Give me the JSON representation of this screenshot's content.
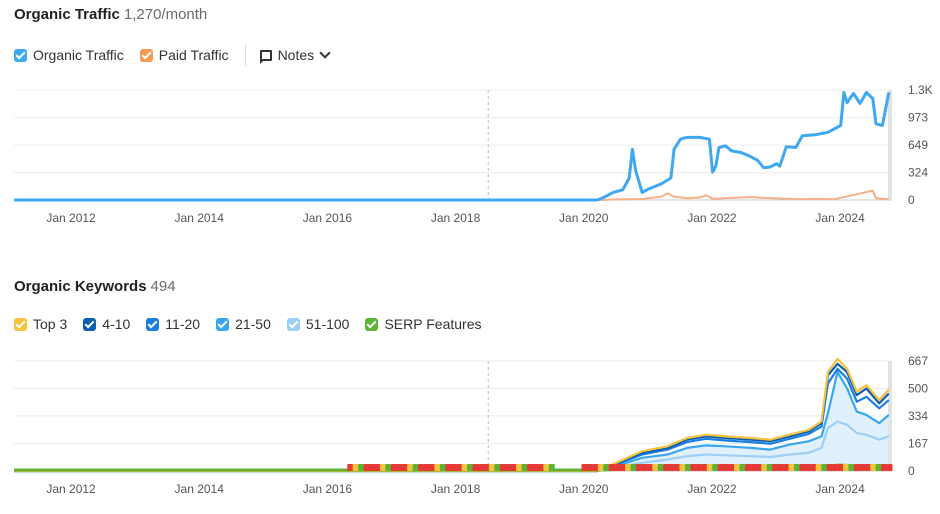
{
  "traffic": {
    "title": "Organic Traffic",
    "value": "1,270/month",
    "legend": [
      {
        "label": "Organic Traffic",
        "color": "#3ea8f0"
      },
      {
        "label": "Paid Traffic",
        "color": "#f79a4d"
      }
    ],
    "notes_label": "Notes"
  },
  "keywords": {
    "title": "Organic Keywords",
    "value": "494",
    "legend": [
      {
        "label": "Top 3",
        "color": "#f7c23c"
      },
      {
        "label": "4-10",
        "color": "#0a5fb4"
      },
      {
        "label": "11-20",
        "color": "#1a7fe0"
      },
      {
        "label": "21-50",
        "color": "#3aa6ee"
      },
      {
        "label": "51-100",
        "color": "#9ccff5"
      },
      {
        "label": "SERP Features",
        "color": "#5cb335"
      }
    ]
  },
  "chart_data": [
    {
      "type": "line",
      "xlim": [
        2011.5,
        2025.2
      ],
      "ylim": [
        0,
        1300
      ],
      "x_ticks": [
        {
          "x": 2012,
          "label": "Jan 2012"
        },
        {
          "x": 2014,
          "label": "Jan 2014"
        },
        {
          "x": 2016,
          "label": "Jan 2016"
        },
        {
          "x": 2018,
          "label": "Jan 2018"
        },
        {
          "x": 2020,
          "label": "Jan 2020"
        },
        {
          "x": 2022,
          "label": "Jan 2022"
        },
        {
          "x": 2024,
          "label": "Jan 2024"
        }
      ],
      "y_ticks": [
        {
          "y": 0,
          "label": "0"
        },
        {
          "y": 324,
          "label": "324"
        },
        {
          "y": 649,
          "label": "649"
        },
        {
          "y": 973,
          "label": "973"
        },
        {
          "y": 1300,
          "label": "1.3K"
        }
      ],
      "marker_x": 2018.9,
      "series": [
        {
          "name": "Organic Traffic",
          "color": "#3ea8f0",
          "points": [
            [
              2011.5,
              0
            ],
            [
              2020.6,
              0
            ],
            [
              2020.7,
              30
            ],
            [
              2020.85,
              90
            ],
            [
              2021.0,
              120
            ],
            [
              2021.1,
              260
            ],
            [
              2021.15,
              600
            ],
            [
              2021.2,
              350
            ],
            [
              2021.3,
              90
            ],
            [
              2021.4,
              130
            ],
            [
              2021.6,
              190
            ],
            [
              2021.75,
              260
            ],
            [
              2021.8,
              600
            ],
            [
              2021.9,
              720
            ],
            [
              2022.0,
              740
            ],
            [
              2022.1,
              740
            ],
            [
              2022.2,
              740
            ],
            [
              2022.35,
              720
            ],
            [
              2022.4,
              330
            ],
            [
              2022.45,
              400
            ],
            [
              2022.5,
              620
            ],
            [
              2022.6,
              640
            ],
            [
              2022.7,
              580
            ],
            [
              2022.85,
              560
            ],
            [
              2023.0,
              510
            ],
            [
              2023.1,
              470
            ],
            [
              2023.2,
              380
            ],
            [
              2023.3,
              390
            ],
            [
              2023.4,
              430
            ],
            [
              2023.45,
              400
            ],
            [
              2023.55,
              630
            ],
            [
              2023.7,
              620
            ],
            [
              2023.8,
              760
            ],
            [
              2024.0,
              770
            ],
            [
              2024.2,
              800
            ],
            [
              2024.4,
              880
            ],
            [
              2024.45,
              1270
            ],
            [
              2024.5,
              1150
            ],
            [
              2024.6,
              1260
            ],
            [
              2024.7,
              1140
            ],
            [
              2024.8,
              1270
            ],
            [
              2024.9,
              1200
            ],
            [
              2024.95,
              900
            ],
            [
              2025.05,
              880
            ],
            [
              2025.15,
              1270
            ]
          ]
        },
        {
          "name": "Paid Traffic",
          "color": "#f7b08a",
          "points": [
            [
              2011.5,
              0
            ],
            [
              2020.7,
              0
            ],
            [
              2020.9,
              8
            ],
            [
              2021.3,
              12
            ],
            [
              2021.6,
              40
            ],
            [
              2021.7,
              80
            ],
            [
              2021.8,
              40
            ],
            [
              2022.0,
              20
            ],
            [
              2022.2,
              30
            ],
            [
              2022.3,
              55
            ],
            [
              2022.4,
              15
            ],
            [
              2023.0,
              35
            ],
            [
              2023.2,
              25
            ],
            [
              2023.8,
              10
            ],
            [
              2024.0,
              15
            ],
            [
              2024.3,
              10
            ],
            [
              2024.9,
              110
            ],
            [
              2024.95,
              20
            ],
            [
              2025.15,
              10
            ]
          ]
        }
      ]
    },
    {
      "type": "area",
      "xlim": [
        2011.5,
        2025.2
      ],
      "ylim": [
        0,
        667
      ],
      "x_ticks": [
        {
          "x": 2012,
          "label": "Jan 2012"
        },
        {
          "x": 2014,
          "label": "Jan 2014"
        },
        {
          "x": 2016,
          "label": "Jan 2016"
        },
        {
          "x": 2018,
          "label": "Jan 2018"
        },
        {
          "x": 2020,
          "label": "Jan 2020"
        },
        {
          "x": 2022,
          "label": "Jan 2022"
        },
        {
          "x": 2024,
          "label": "Jan 2024"
        }
      ],
      "y_ticks": [
        {
          "y": 0,
          "label": "0"
        },
        {
          "y": 167,
          "label": "167"
        },
        {
          "y": 334,
          "label": "334"
        },
        {
          "y": 500,
          "label": "500"
        },
        {
          "y": 667,
          "label": "667"
        }
      ],
      "marker_x": 2018.9,
      "x": [
        2011.5,
        2016.7,
        2020.6,
        2020.9,
        2021.3,
        2021.7,
        2022.0,
        2022.3,
        2022.6,
        2023.0,
        2023.3,
        2023.6,
        2023.9,
        2024.1,
        2024.2,
        2024.35,
        2024.5,
        2024.65,
        2024.8,
        2025.0,
        2025.15
      ],
      "series": [
        {
          "name": "Top 3",
          "color": "#f7c23c",
          "values": [
            0,
            0,
            0,
            50,
            120,
            150,
            200,
            220,
            210,
            200,
            190,
            220,
            250,
            300,
            600,
            680,
            620,
            480,
            520,
            430,
            495
          ]
        },
        {
          "name": "4-10",
          "color": "#0a5fb4",
          "values": [
            0,
            0,
            0,
            45,
            110,
            140,
            190,
            210,
            200,
            190,
            180,
            210,
            240,
            290,
            580,
            650,
            600,
            460,
            500,
            410,
            470
          ]
        },
        {
          "name": "11-20",
          "color": "#1a7fe0",
          "values": [
            0,
            0,
            0,
            40,
            100,
            130,
            175,
            195,
            185,
            175,
            165,
            195,
            225,
            270,
            530,
            620,
            560,
            420,
            450,
            380,
            430
          ]
        },
        {
          "name": "21-50",
          "color": "#3aa6ee",
          "values": [
            0,
            0,
            0,
            30,
            80,
            100,
            140,
            155,
            150,
            140,
            130,
            160,
            180,
            210,
            350,
            600,
            500,
            360,
            340,
            290,
            340
          ]
        },
        {
          "name": "51-100",
          "color": "#9ccff5",
          "values": [
            0,
            0,
            0,
            20,
            50,
            70,
            90,
            100,
            95,
            90,
            85,
            100,
            110,
            140,
            260,
            300,
            280,
            230,
            220,
            190,
            210
          ]
        },
        {
          "name": "SERP Features",
          "color": "#5cb335",
          "values": [
            0,
            0,
            0,
            3,
            5,
            5,
            6,
            8,
            8,
            8,
            8,
            10,
            12,
            14,
            20,
            30,
            28,
            22,
            20,
            18,
            20
          ]
        }
      ]
    }
  ]
}
